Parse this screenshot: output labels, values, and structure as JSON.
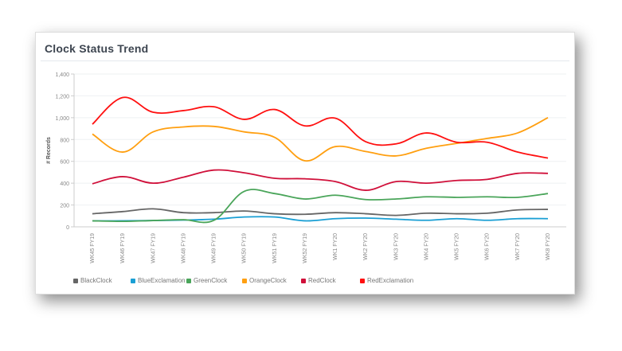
{
  "card": {
    "title": "Clock Status Trend"
  },
  "chart_data": {
    "type": "line",
    "title": "Clock Status Trend",
    "xlabel": "",
    "ylabel": "# Records",
    "ylim": [
      0,
      1400
    ],
    "yticks": [
      "0",
      "200",
      "400",
      "600",
      "800",
      "1,000",
      "1,200",
      "1,400"
    ],
    "grid": true,
    "legend": "bottom",
    "categories": [
      "WK45 FY19",
      "WK46 FY19",
      "WK47 FY19",
      "WK48 FY19",
      "WK49 FY19",
      "WK50 FY19",
      "WK51 FY19",
      "WK52 FY19",
      "WK1 FY20",
      "WK2 FY20",
      "WK3 FY20",
      "WK4 FY20",
      "WK5 FY20",
      "WK6 FY20",
      "WK7 FY20",
      "WK8 FY20"
    ],
    "series": [
      {
        "name": "BlackClock",
        "color": "#666666",
        "values": [
          120,
          140,
          165,
          130,
          130,
          145,
          120,
          115,
          130,
          120,
          105,
          125,
          120,
          125,
          155,
          160
        ]
      },
      {
        "name": "BlueExclamation",
        "color": "#1a9fd4",
        "values": [
          55,
          55,
          58,
          62,
          70,
          90,
          90,
          55,
          75,
          80,
          70,
          60,
          75,
          60,
          75,
          75
        ]
      },
      {
        "name": "GreenClock",
        "color": "#4aa55a",
        "values": [
          55,
          50,
          58,
          65,
          60,
          325,
          305,
          255,
          290,
          250,
          255,
          275,
          270,
          275,
          270,
          305
        ]
      },
      {
        "name": "OrangeClock",
        "color": "#ff9f10",
        "values": [
          850,
          685,
          870,
          915,
          920,
          870,
          820,
          605,
          735,
          690,
          650,
          720,
          765,
          810,
          860,
          1000
        ]
      },
      {
        "name": "RedClock",
        "color": "#d0103a",
        "values": [
          395,
          460,
          400,
          455,
          520,
          495,
          445,
          440,
          415,
          335,
          415,
          400,
          425,
          435,
          490,
          490
        ]
      },
      {
        "name": "RedExclamation",
        "color": "#ff1010",
        "values": [
          940,
          1185,
          1050,
          1065,
          1100,
          985,
          1075,
          925,
          995,
          780,
          760,
          860,
          775,
          775,
          685,
          630
        ]
      }
    ]
  }
}
